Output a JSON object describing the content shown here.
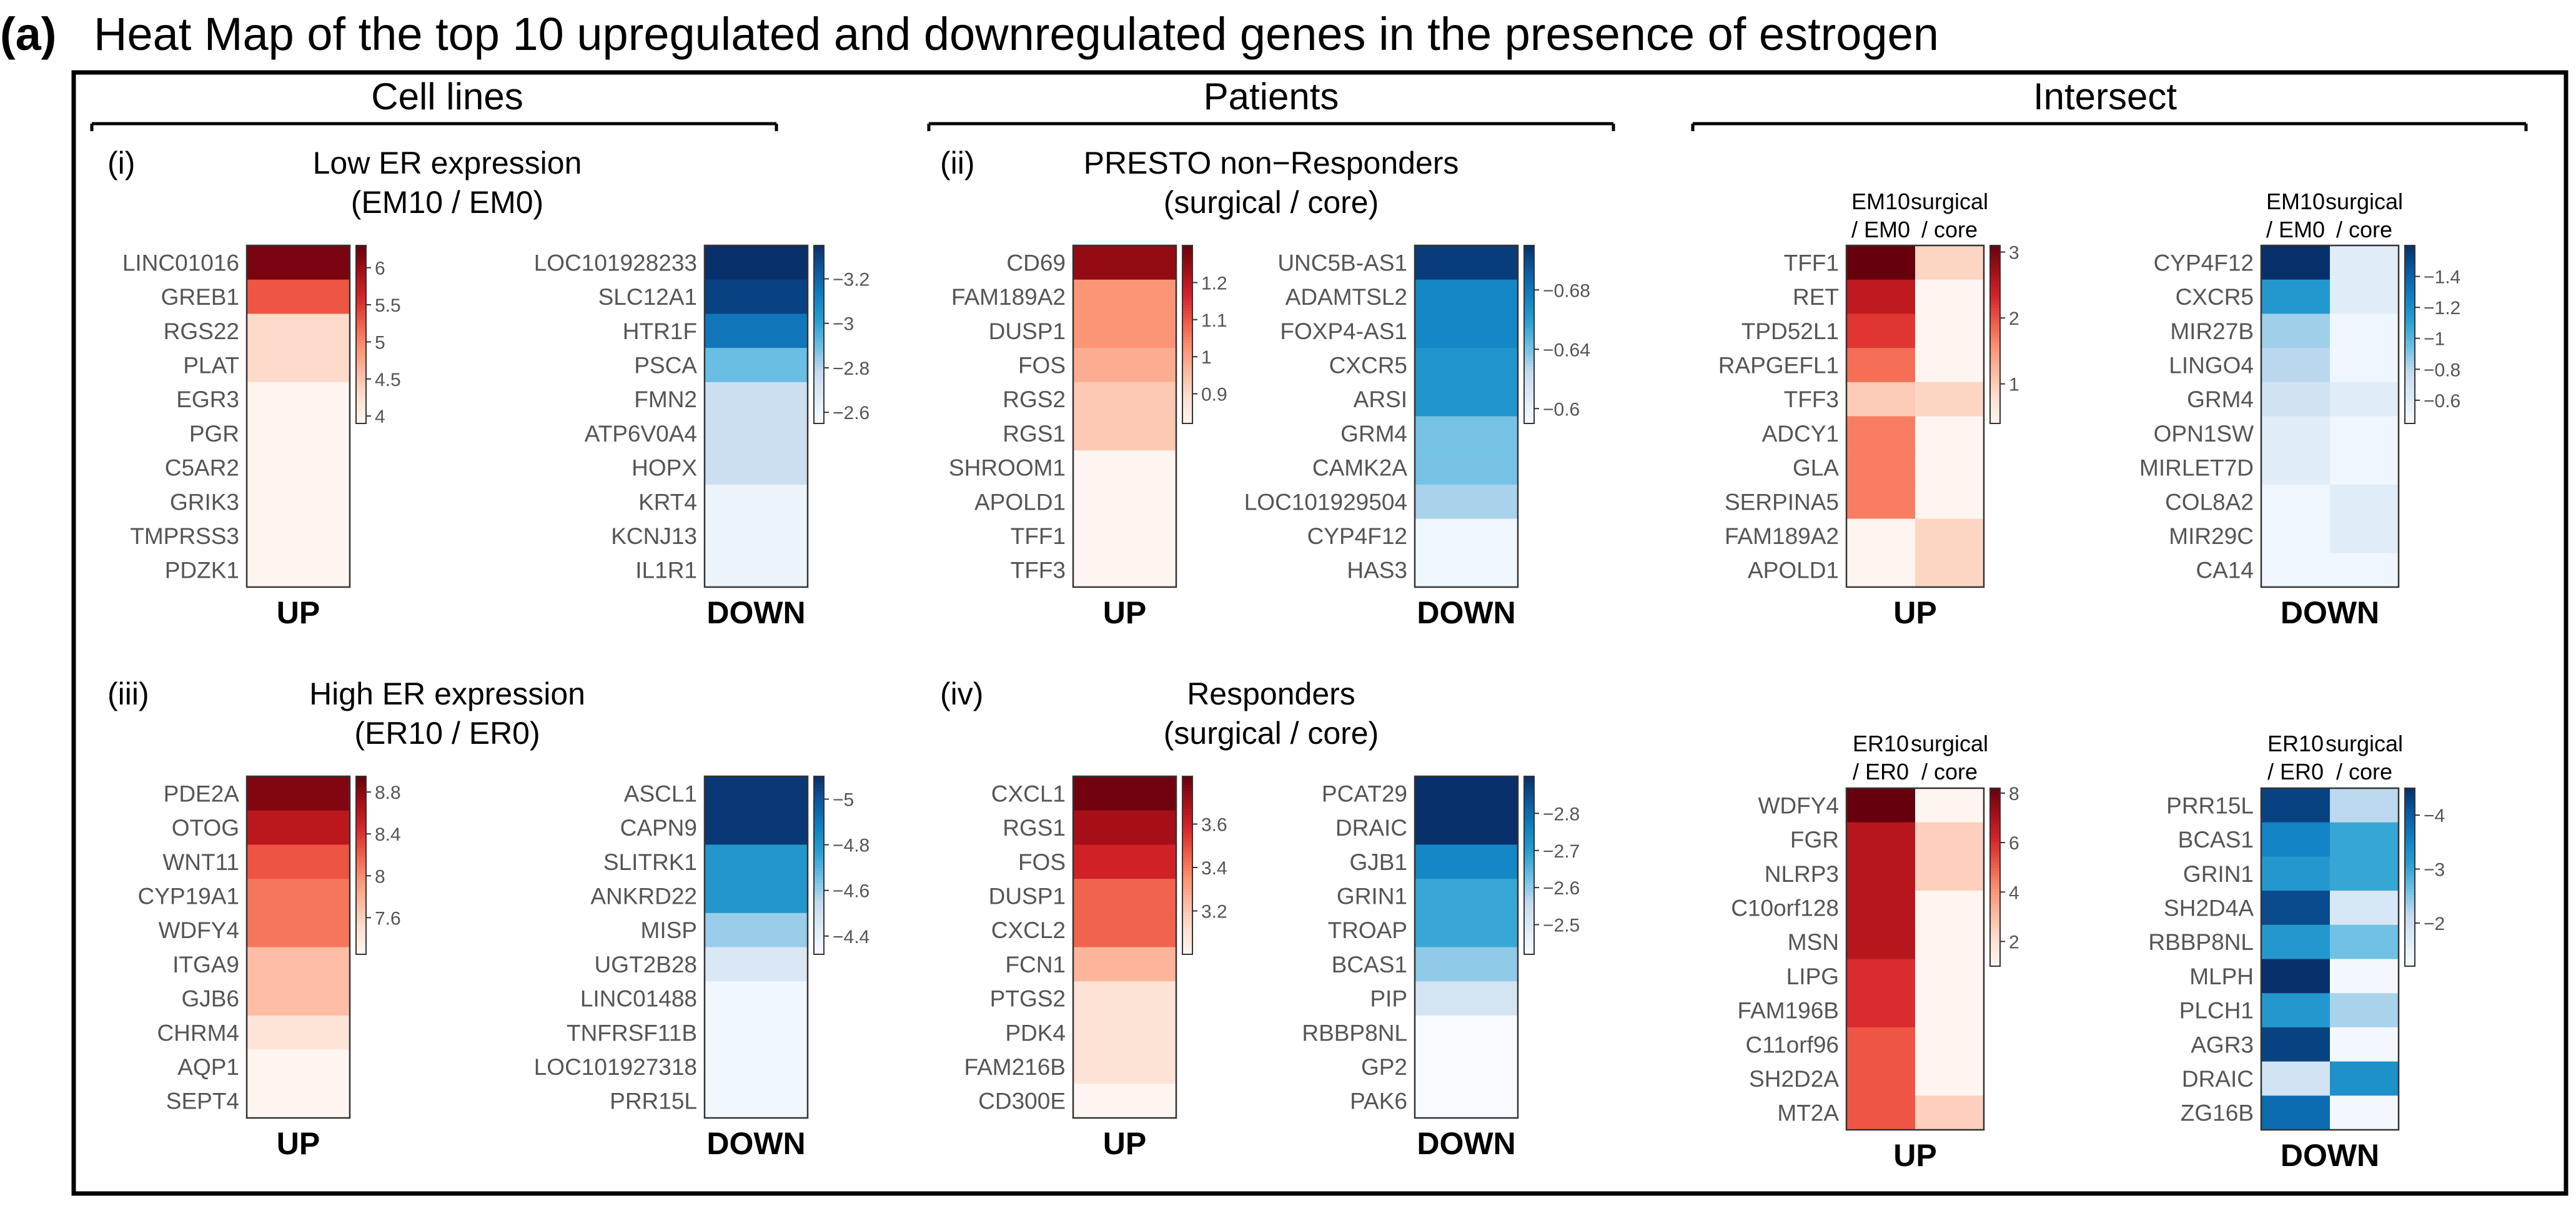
{
  "panel_label": "(a)",
  "title": "Heat Map of the top 10 upregulated and downregulated genes in the presence of estrogen",
  "section_headers": [
    "Cell lines",
    "Patients",
    "Intersect"
  ],
  "colors": {
    "red_scale": [
      "#fff5f0",
      "#fde0d2",
      "#fcbba1",
      "#fc9272",
      "#f05a46",
      "#d6232a",
      "#a50f15",
      "#67000d"
    ],
    "blue_scale": [
      "#f7fbff",
      "#deebf7",
      "#c6dbef",
      "#6ec0e4",
      "#2aa0d2",
      "#1080c3",
      "#0b5aa0",
      "#08306b"
    ],
    "frame": "#000000"
  },
  "chart_data": [
    {
      "type": "heatmap",
      "id": "i-up",
      "tag": "(i)",
      "title": "Low ER expression",
      "subtitle": "(EM10 / EM0)",
      "label": "UP",
      "scale": "red",
      "columns": [],
      "genes": [
        "LINC01016",
        "GREB1",
        "RGS22",
        "PLAT",
        "EGR3",
        "PGR",
        "C5AR2",
        "GRIK3",
        "TMPRSS3",
        "PDZK1"
      ],
      "values": [
        [
          6.2
        ],
        [
          5.3
        ],
        [
          4.3
        ],
        [
          4.3
        ],
        [
          3.9
        ],
        [
          3.9
        ],
        [
          3.9
        ],
        [
          3.9
        ],
        [
          3.9
        ],
        [
          3.9
        ]
      ],
      "range": [
        3.9,
        6.3
      ],
      "colorbar_ticks": [
        {
          "v": 6,
          "t": "6"
        },
        {
          "v": 5.5,
          "t": "5.5"
        },
        {
          "v": 5,
          "t": "5"
        },
        {
          "v": 4.5,
          "t": "4.5"
        },
        {
          "v": 4,
          "t": "4"
        }
      ]
    },
    {
      "type": "heatmap",
      "id": "i-down",
      "label": "DOWN",
      "scale": "blue",
      "columns": [],
      "genes": [
        "LOC101928233",
        "SLC12A1",
        "HTR1F",
        "PSCA",
        "FMN2",
        "ATP6V0A4",
        "HOPX",
        "KRT4",
        "KCNJ13",
        "IL1R1"
      ],
      "values": [
        [
          -3.35
        ],
        [
          -3.3
        ],
        [
          -3.15
        ],
        [
          -2.9
        ],
        [
          -2.75
        ],
        [
          -2.75
        ],
        [
          -2.75
        ],
        [
          -2.6
        ],
        [
          -2.6
        ],
        [
          -2.6
        ]
      ],
      "range": [
        -3.35,
        -2.55
      ],
      "colorbar_ticks": [
        {
          "v": -2.6,
          "t": "−2.6"
        },
        {
          "v": -2.8,
          "t": "−2.8"
        },
        {
          "v": -3,
          "t": "−3"
        },
        {
          "v": -3.2,
          "t": "−3.2"
        }
      ]
    },
    {
      "type": "heatmap",
      "id": "ii-up",
      "tag": "(ii)",
      "title": "PRESTO non−Responders",
      "subtitle": "(surgical / core)",
      "label": "UP",
      "scale": "red",
      "columns": [],
      "genes": [
        "CD69",
        "FAM189A2",
        "DUSP1",
        "FOS",
        "RGS2",
        "RGS1",
        "SHROOM1",
        "APOLD1",
        "TFF1",
        "TFF3"
      ],
      "values": [
        [
          1.25
        ],
        [
          1.02
        ],
        [
          1.02
        ],
        [
          0.98
        ],
        [
          0.93
        ],
        [
          0.93
        ],
        [
          0.82
        ],
        [
          0.82
        ],
        [
          0.82
        ],
        [
          0.82
        ]
      ],
      "range": [
        0.82,
        1.3
      ],
      "colorbar_ticks": [
        {
          "v": 1.2,
          "t": "1.2"
        },
        {
          "v": 1.1,
          "t": "1.1"
        },
        {
          "v": 1,
          "t": "1"
        },
        {
          "v": 0.9,
          "t": "0.9"
        }
      ]
    },
    {
      "type": "heatmap",
      "id": "ii-down",
      "label": "DOWN",
      "scale": "blue",
      "columns": [],
      "genes": [
        "UNC5B-AS1",
        "ADAMTSL2",
        "FOXP4-AS1",
        "CXCR5",
        "ARSI",
        "GRM4",
        "CAMK2A",
        "LOC101929504",
        "CYP4F12",
        "HAS3"
      ],
      "values": [
        [
          -0.705
        ],
        [
          -0.672
        ],
        [
          -0.672
        ],
        [
          -0.665
        ],
        [
          -0.665
        ],
        [
          -0.64
        ],
        [
          -0.64
        ],
        [
          -0.63
        ],
        [
          -0.595
        ],
        [
          -0.595
        ]
      ],
      "range": [
        -0.71,
        -0.59
      ],
      "colorbar_ticks": [
        {
          "v": -0.6,
          "t": "−0.6"
        },
        {
          "v": -0.64,
          "t": "−0.64"
        },
        {
          "v": -0.68,
          "t": "−0.68"
        }
      ]
    },
    {
      "type": "heatmap",
      "id": "int-up-1",
      "label": "UP",
      "scale": "red",
      "columns": [
        "EM10\n/ EM0",
        "surgical\n/ core"
      ],
      "genes": [
        "TFF1",
        "RET",
        "TPD52L1",
        "RAPGEFL1",
        "TFF3",
        "ADCY1",
        "GLA",
        "SERPINA5",
        "FAM189A2",
        "APOLD1"
      ],
      "values": [
        [
          3.1,
          0.9
        ],
        [
          2.5,
          0.4
        ],
        [
          2.2,
          0.4
        ],
        [
          1.8,
          0.4
        ],
        [
          1.0,
          0.9
        ],
        [
          1.7,
          0.4
        ],
        [
          1.7,
          0.4
        ],
        [
          1.7,
          0.4
        ],
        [
          0.4,
          0.9
        ],
        [
          0.4,
          0.9
        ]
      ],
      "range": [
        0.4,
        3.1
      ],
      "colorbar_ticks": [
        {
          "v": 3,
          "t": "3"
        },
        {
          "v": 2,
          "t": "2"
        },
        {
          "v": 1,
          "t": "1"
        }
      ]
    },
    {
      "type": "heatmap",
      "id": "int-down-1",
      "label": "DOWN",
      "scale": "blue",
      "columns": [
        "EM10\n/ EM0",
        "surgical\n/ core"
      ],
      "genes": [
        "CYP4F12",
        "CXCR5",
        "MIR27B",
        "LINGO4",
        "GRM4",
        "OPN1SW",
        "MIRLET7D",
        "COL8A2",
        "MIR29C",
        "CA14"
      ],
      "values": [
        [
          -1.6,
          -0.6
        ],
        [
          -1.15,
          -0.6
        ],
        [
          -0.85,
          -0.5
        ],
        [
          -0.8,
          -0.5
        ],
        [
          -0.7,
          -0.6
        ],
        [
          -0.6,
          -0.5
        ],
        [
          -0.6,
          -0.5
        ],
        [
          -0.5,
          -0.6
        ],
        [
          -0.5,
          -0.6
        ],
        [
          -0.5,
          -0.5
        ]
      ],
      "range": [
        -1.6,
        -0.45
      ],
      "colorbar_ticks": [
        {
          "v": -0.6,
          "t": "−0.6"
        },
        {
          "v": -0.8,
          "t": "−0.8"
        },
        {
          "v": -1,
          "t": "−1"
        },
        {
          "v": -1.2,
          "t": "−1.2"
        },
        {
          "v": -1.4,
          "t": "−1.4"
        }
      ]
    },
    {
      "type": "heatmap",
      "id": "iii-up",
      "tag": "(iii)",
      "title": "High ER expression",
      "subtitle": "(ER10 / ER0)",
      "label": "UP",
      "scale": "red",
      "columns": [],
      "genes": [
        "PDE2A",
        "OTOG",
        "WNT11",
        "CYP19A1",
        "WDFY4",
        "ITGA9",
        "GJB6",
        "CHRM4",
        "AQP1",
        "SEPT4"
      ],
      "values": [
        [
          8.85
        ],
        [
          8.6
        ],
        [
          8.25
        ],
        [
          8.1
        ],
        [
          8.1
        ],
        [
          7.72
        ],
        [
          7.72
        ],
        [
          7.45
        ],
        [
          7.25
        ],
        [
          7.25
        ]
      ],
      "range": [
        7.25,
        8.95
      ],
      "colorbar_ticks": [
        {
          "v": 8.8,
          "t": "8.8"
        },
        {
          "v": 8.4,
          "t": "8.4"
        },
        {
          "v": 8,
          "t": "8"
        },
        {
          "v": 7.6,
          "t": "7.6"
        }
      ]
    },
    {
      "type": "heatmap",
      "id": "iii-down",
      "label": "DOWN",
      "scale": "blue",
      "columns": [],
      "genes": [
        "ASCL1",
        "CAPN9",
        "SLITRK1",
        "ANKRD22",
        "MISP",
        "UGT2B28",
        "LINC01488",
        "TNFRSF11B",
        "LOC101927318",
        "PRR15L"
      ],
      "values": [
        [
          -5.08
        ],
        [
          -5.08
        ],
        [
          -4.8
        ],
        [
          -4.8
        ],
        [
          -4.6
        ],
        [
          -4.45
        ],
        [
          -4.35
        ],
        [
          -4.35
        ],
        [
          -4.35
        ],
        [
          -4.35
        ]
      ],
      "range": [
        -5.1,
        -4.32
      ],
      "colorbar_ticks": [
        {
          "v": -4.4,
          "t": "−4.4"
        },
        {
          "v": -4.6,
          "t": "−4.6"
        },
        {
          "v": -4.8,
          "t": "−4.8"
        },
        {
          "v": -5,
          "t": "−5"
        }
      ]
    },
    {
      "type": "heatmap",
      "id": "iv-up",
      "tag": "(iv)",
      "title": "Responders",
      "subtitle": "(surgical / core)",
      "label": "UP",
      "scale": "red",
      "columns": [],
      "genes": [
        "CXCL1",
        "RGS1",
        "FOS",
        "DUSP1",
        "CXCL2",
        "FCN1",
        "PTGS2",
        "PDK4",
        "FAM216B",
        "CD300E"
      ],
      "values": [
        [
          3.8
        ],
        [
          3.7
        ],
        [
          3.6
        ],
        [
          3.45
        ],
        [
          3.45
        ],
        [
          3.25
        ],
        [
          3.1
        ],
        [
          3.1
        ],
        [
          3.1
        ],
        [
          3.0
        ]
      ],
      "range": [
        3.0,
        3.82
      ],
      "colorbar_ticks": [
        {
          "v": 3.6,
          "t": "3.6"
        },
        {
          "v": 3.4,
          "t": "3.4"
        },
        {
          "v": 3.2,
          "t": "3.2"
        }
      ]
    },
    {
      "type": "heatmap",
      "id": "iv-down",
      "label": "DOWN",
      "scale": "blue",
      "columns": [],
      "genes": [
        "PCAT29",
        "DRAIC",
        "GJB1",
        "GRIN1",
        "TROAP",
        "BCAS1",
        "PIP",
        "RBBP8NL",
        "GP2",
        "PAK6"
      ],
      "values": [
        [
          -2.9
        ],
        [
          -2.9
        ],
        [
          -2.75
        ],
        [
          -2.68
        ],
        [
          -2.68
        ],
        [
          -2.6
        ],
        [
          -2.52
        ],
        [
          -2.42
        ],
        [
          -2.42
        ],
        [
          -2.42
        ]
      ],
      "range": [
        -2.9,
        -2.42
      ],
      "colorbar_ticks": [
        {
          "v": -2.5,
          "t": "−2.5"
        },
        {
          "v": -2.6,
          "t": "−2.6"
        },
        {
          "v": -2.7,
          "t": "−2.7"
        },
        {
          "v": -2.8,
          "t": "−2.8"
        }
      ]
    },
    {
      "type": "heatmap",
      "id": "int-up-2",
      "label": "UP",
      "scale": "red",
      "columns": [
        "ER10\n/ ER0",
        "surgical\n/ core"
      ],
      "genes": [
        "WDFY4",
        "FGR",
        "NLRP3",
        "C10orf128",
        "MSN",
        "LIPG",
        "FAM196B",
        "C11orf96",
        "SH2D2A",
        "MT2A"
      ],
      "values": [
        [
          8.2,
          1.0
        ],
        [
          6.8,
          2.5
        ],
        [
          6.8,
          2.5
        ],
        [
          6.8,
          1.0
        ],
        [
          6.8,
          1.0
        ],
        [
          6.0,
          1.0
        ],
        [
          6.0,
          1.0
        ],
        [
          5.2,
          1.0
        ],
        [
          5.2,
          1.0
        ],
        [
          5.2,
          2.5
        ]
      ],
      "range": [
        1.0,
        8.2
      ],
      "colorbar_ticks": [
        {
          "v": 8,
          "t": "8"
        },
        {
          "v": 6,
          "t": "6"
        },
        {
          "v": 4,
          "t": "4"
        },
        {
          "v": 2,
          "t": "2"
        }
      ]
    },
    {
      "type": "heatmap",
      "id": "int-down-2",
      "label": "DOWN",
      "scale": "blue",
      "columns": [
        "ER10\n/ ER0",
        "surgical\n/ core"
      ],
      "genes": [
        "PRR15L",
        "BCAS1",
        "GRIN1",
        "SH2D4A",
        "RBBP8NL",
        "MLPH",
        "PLCH1",
        "AGR3",
        "DRAIC",
        "ZG16B"
      ],
      "values": [
        [
          -4.3,
          -2.2
        ],
        [
          -3.5,
          -3.0
        ],
        [
          -3.2,
          -3.0
        ],
        [
          -4.2,
          -1.8
        ],
        [
          -3.2,
          -2.6
        ],
        [
          -4.5,
          -1.3
        ],
        [
          -3.2,
          -2.3
        ],
        [
          -4.3,
          -1.3
        ],
        [
          -1.9,
          -3.3
        ],
        [
          -3.8,
          -1.3
        ]
      ],
      "range": [
        -4.5,
        -1.2
      ],
      "colorbar_ticks": [
        {
          "v": -2,
          "t": "−2"
        },
        {
          "v": -3,
          "t": "−3"
        },
        {
          "v": -4,
          "t": "−4"
        }
      ]
    }
  ]
}
